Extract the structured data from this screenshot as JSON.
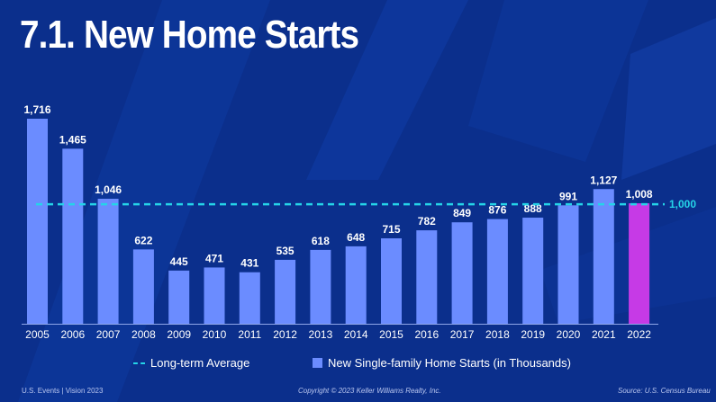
{
  "page_title": "7.1. New Home Starts",
  "chart_data": {
    "type": "bar",
    "categories": [
      "2005",
      "2006",
      "2007",
      "2008",
      "2009",
      "2010",
      "2011",
      "2012",
      "2013",
      "2014",
      "2015",
      "2016",
      "2017",
      "2018",
      "2019",
      "2020",
      "2021",
      "2022"
    ],
    "values": [
      1716,
      1465,
      1046,
      622,
      445,
      471,
      431,
      535,
      618,
      648,
      715,
      782,
      849,
      876,
      888,
      991,
      1127,
      1008
    ],
    "value_labels": [
      "1,716",
      "1,465",
      "1,046",
      "622",
      "445",
      "471",
      "431",
      "535",
      "618",
      "648",
      "715",
      "782",
      "849",
      "876",
      "888",
      "991",
      "1,127",
      "1,008"
    ],
    "ylim": [
      0,
      1716
    ],
    "reference_line": {
      "name": "Long-term Average",
      "value": 1000,
      "label": "1,000"
    },
    "series_name": "New Single-family Home Starts (in Thousands)",
    "highlight_index": 17,
    "colors": {
      "bar": "#6b8cff",
      "highlight": "#c63ae6",
      "average": "#25d4e8",
      "axis": "#8fa6e8"
    }
  },
  "legend": {
    "average_label": "Long-term Average",
    "bars_label": "New Single-family Home Starts (in Thousands)"
  },
  "footer": {
    "left": "U.S. Events  |  Vision 2023",
    "center": "Copyright © 2023 Keller Williams Realty, Inc.",
    "right": "Source: U.S. Census Bureau"
  }
}
